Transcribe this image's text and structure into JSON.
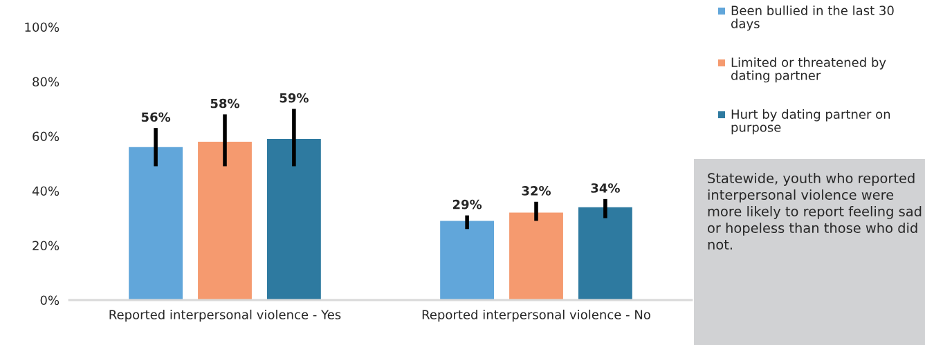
{
  "chart_data": {
    "type": "bar",
    "categories": [
      "Reported interpersonal violence - Yes",
      "Reported interpersonal violence - No"
    ],
    "series": [
      {
        "name": "Been bullied in the last 30 days",
        "color": "#61a6da",
        "values": [
          56,
          29
        ],
        "errors": [
          [
            49,
            63
          ],
          [
            26,
            31
          ]
        ],
        "value_labels": [
          "56%",
          "29%"
        ]
      },
      {
        "name": "Limited or threatened by dating partner",
        "color": "#f59a6f",
        "values": [
          58,
          32
        ],
        "errors": [
          [
            49,
            68
          ],
          [
            29,
            36
          ]
        ],
        "value_labels": [
          "58%",
          "32%"
        ]
      },
      {
        "name": "Hurt by dating partner on purpose",
        "color": "#2e7aa0",
        "values": [
          59,
          34
        ],
        "errors": [
          [
            49,
            70
          ],
          [
            30,
            37
          ]
        ],
        "value_labels": [
          "59%",
          "34%"
        ]
      }
    ],
    "ylim": [
      0,
      100
    ],
    "yticks": [
      {
        "value": 0,
        "label": "0%"
      },
      {
        "value": 20,
        "label": "20%"
      },
      {
        "value": 40,
        "label": "40%"
      },
      {
        "value": 60,
        "label": "60%"
      },
      {
        "value": 80,
        "label": "80%"
      },
      {
        "value": 100,
        "label": "100%"
      }
    ],
    "grid": false,
    "legend": "top right",
    "annotations": [
      "Statewide, youth who reported interpersonal violence were more likely to report feeling sad or hopeless than those who did not."
    ]
  }
}
